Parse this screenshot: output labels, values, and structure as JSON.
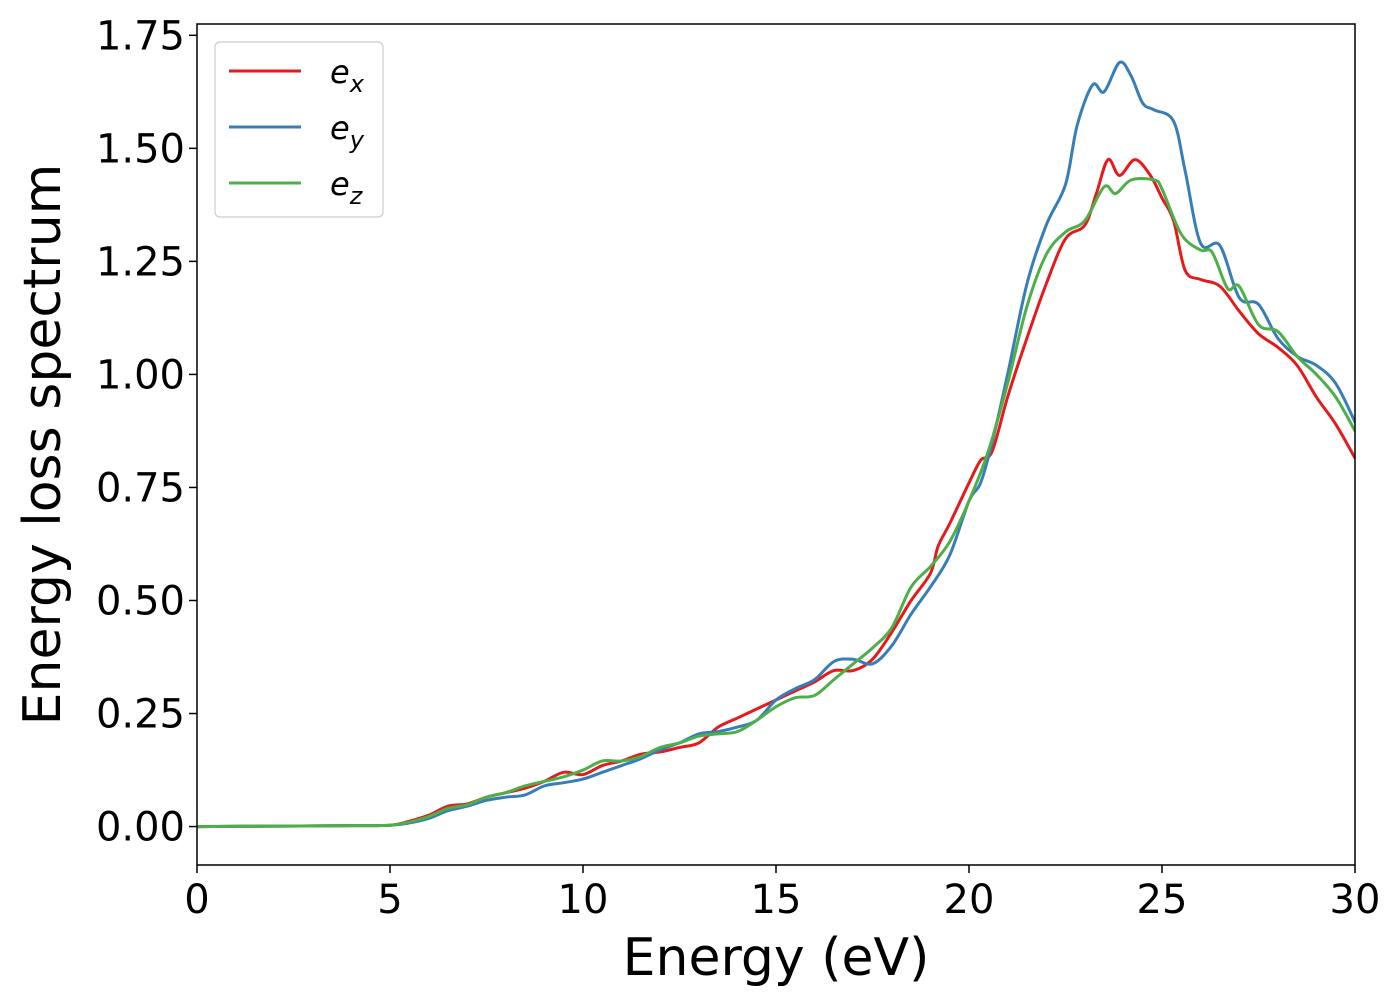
{
  "chart_data": {
    "type": "line",
    "xlabel": "Energy (eV)",
    "ylabel": "Energy loss spectrum",
    "xlim": [
      0,
      30
    ],
    "ylim": [
      -0.085,
      1.775
    ],
    "xticks": [
      0,
      5,
      10,
      15,
      20,
      25,
      30
    ],
    "xtick_labels": [
      "0",
      "5",
      "10",
      "15",
      "20",
      "25",
      "30"
    ],
    "yticks": [
      0.0,
      0.25,
      0.5,
      0.75,
      1.0,
      1.25,
      1.5,
      1.75
    ],
    "ytick_labels": [
      "0.00",
      "0.25",
      "0.50",
      "0.75",
      "1.00",
      "1.25",
      "1.50",
      "1.75"
    ],
    "grid": false,
    "legend_position": "top-left",
    "series": [
      {
        "name": "e",
        "subscript": "x",
        "color": "#e41a1c",
        "points": [
          [
            0,
            0
          ],
          [
            2,
            0.001
          ],
          [
            4,
            0.002
          ],
          [
            5,
            0.003
          ],
          [
            5.5,
            0.012
          ],
          [
            6,
            0.025
          ],
          [
            6.5,
            0.045
          ],
          [
            7,
            0.05
          ],
          [
            7.5,
            0.065
          ],
          [
            8,
            0.075
          ],
          [
            8.5,
            0.085
          ],
          [
            9,
            0.1
          ],
          [
            9.5,
            0.12
          ],
          [
            10,
            0.115
          ],
          [
            10.5,
            0.135
          ],
          [
            11,
            0.145
          ],
          [
            11.5,
            0.16
          ],
          [
            12,
            0.165
          ],
          [
            12.5,
            0.175
          ],
          [
            13,
            0.185
          ],
          [
            13.5,
            0.22
          ],
          [
            14,
            0.24
          ],
          [
            14.5,
            0.26
          ],
          [
            15,
            0.28
          ],
          [
            15.5,
            0.3
          ],
          [
            16,
            0.32
          ],
          [
            16.5,
            0.345
          ],
          [
            17,
            0.345
          ],
          [
            17.5,
            0.37
          ],
          [
            18,
            0.43
          ],
          [
            18.5,
            0.5
          ],
          [
            19,
            0.56
          ],
          [
            19.2,
            0.62
          ],
          [
            19.5,
            0.67
          ],
          [
            20,
            0.76
          ],
          [
            20.3,
            0.81
          ],
          [
            20.6,
            0.83
          ],
          [
            21,
            0.95
          ],
          [
            21.5,
            1.08
          ],
          [
            22,
            1.2
          ],
          [
            22.5,
            1.3
          ],
          [
            23,
            1.33
          ],
          [
            23.3,
            1.4
          ],
          [
            23.6,
            1.475
          ],
          [
            23.9,
            1.44
          ],
          [
            24.3,
            1.475
          ],
          [
            24.7,
            1.44
          ],
          [
            25,
            1.39
          ],
          [
            25.3,
            1.34
          ],
          [
            25.6,
            1.23
          ],
          [
            26,
            1.21
          ],
          [
            26.5,
            1.195
          ],
          [
            27,
            1.14
          ],
          [
            27.5,
            1.09
          ],
          [
            28,
            1.06
          ],
          [
            28.5,
            1.02
          ],
          [
            29,
            0.95
          ],
          [
            29.5,
            0.89
          ],
          [
            30,
            0.815
          ]
        ]
      },
      {
        "name": "e",
        "subscript": "y",
        "color": "#377eb8",
        "points": [
          [
            0,
            0
          ],
          [
            2,
            0.001
          ],
          [
            4,
            0.002
          ],
          [
            5,
            0.003
          ],
          [
            5.5,
            0.008
          ],
          [
            6,
            0.018
          ],
          [
            6.5,
            0.035
          ],
          [
            7,
            0.045
          ],
          [
            7.5,
            0.058
          ],
          [
            8,
            0.065
          ],
          [
            8.5,
            0.07
          ],
          [
            9,
            0.09
          ],
          [
            9.5,
            0.097
          ],
          [
            10,
            0.105
          ],
          [
            10.5,
            0.12
          ],
          [
            11,
            0.135
          ],
          [
            11.5,
            0.15
          ],
          [
            12,
            0.17
          ],
          [
            12.5,
            0.185
          ],
          [
            13,
            0.205
          ],
          [
            13.5,
            0.21
          ],
          [
            14,
            0.22
          ],
          [
            14.5,
            0.235
          ],
          [
            15,
            0.28
          ],
          [
            15.5,
            0.305
          ],
          [
            16,
            0.325
          ],
          [
            16.5,
            0.365
          ],
          [
            17,
            0.37
          ],
          [
            17.5,
            0.36
          ],
          [
            18,
            0.4
          ],
          [
            18.5,
            0.47
          ],
          [
            19,
            0.53
          ],
          [
            19.5,
            0.6
          ],
          [
            20,
            0.72
          ],
          [
            20.3,
            0.76
          ],
          [
            20.6,
            0.85
          ],
          [
            21,
            1.0
          ],
          [
            21.5,
            1.2
          ],
          [
            22,
            1.33
          ],
          [
            22.5,
            1.42
          ],
          [
            22.8,
            1.55
          ],
          [
            23.2,
            1.64
          ],
          [
            23.5,
            1.625
          ],
          [
            23.9,
            1.69
          ],
          [
            24.2,
            1.66
          ],
          [
            24.5,
            1.6
          ],
          [
            24.8,
            1.585
          ],
          [
            25.3,
            1.56
          ],
          [
            25.6,
            1.45
          ],
          [
            26,
            1.29
          ],
          [
            26.5,
            1.285
          ],
          [
            27,
            1.17
          ],
          [
            27.5,
            1.155
          ],
          [
            28,
            1.08
          ],
          [
            28.5,
            1.04
          ],
          [
            29,
            1.02
          ],
          [
            29.5,
            0.98
          ],
          [
            30,
            0.895
          ]
        ]
      },
      {
        "name": "e",
        "subscript": "z",
        "color": "#4daf4a",
        "points": [
          [
            0,
            0
          ],
          [
            2,
            0.001
          ],
          [
            4,
            0.002
          ],
          [
            5,
            0.003
          ],
          [
            5.5,
            0.01
          ],
          [
            6,
            0.022
          ],
          [
            6.5,
            0.04
          ],
          [
            7,
            0.048
          ],
          [
            7.5,
            0.065
          ],
          [
            8,
            0.075
          ],
          [
            8.5,
            0.09
          ],
          [
            9,
            0.1
          ],
          [
            9.5,
            0.11
          ],
          [
            10,
            0.125
          ],
          [
            10.5,
            0.145
          ],
          [
            11,
            0.145
          ],
          [
            11.5,
            0.155
          ],
          [
            12,
            0.175
          ],
          [
            12.5,
            0.185
          ],
          [
            13,
            0.2
          ],
          [
            13.5,
            0.205
          ],
          [
            14,
            0.21
          ],
          [
            14.5,
            0.235
          ],
          [
            15,
            0.265
          ],
          [
            15.5,
            0.285
          ],
          [
            16,
            0.29
          ],
          [
            16.5,
            0.325
          ],
          [
            17,
            0.36
          ],
          [
            17.5,
            0.395
          ],
          [
            18,
            0.44
          ],
          [
            18.5,
            0.53
          ],
          [
            19,
            0.575
          ],
          [
            19.5,
            0.63
          ],
          [
            20,
            0.72
          ],
          [
            20.5,
            0.83
          ],
          [
            21,
            0.98
          ],
          [
            21.5,
            1.15
          ],
          [
            22,
            1.265
          ],
          [
            22.5,
            1.315
          ],
          [
            23,
            1.34
          ],
          [
            23.5,
            1.415
          ],
          [
            23.8,
            1.4
          ],
          [
            24.2,
            1.43
          ],
          [
            24.8,
            1.43
          ],
          [
            25,
            1.41
          ],
          [
            25.5,
            1.31
          ],
          [
            26,
            1.275
          ],
          [
            26.3,
            1.27
          ],
          [
            26.7,
            1.19
          ],
          [
            27,
            1.195
          ],
          [
            27.5,
            1.11
          ],
          [
            28,
            1.095
          ],
          [
            28.5,
            1.04
          ],
          [
            29,
            1.0
          ],
          [
            29.5,
            0.95
          ],
          [
            30,
            0.875
          ]
        ]
      }
    ]
  }
}
